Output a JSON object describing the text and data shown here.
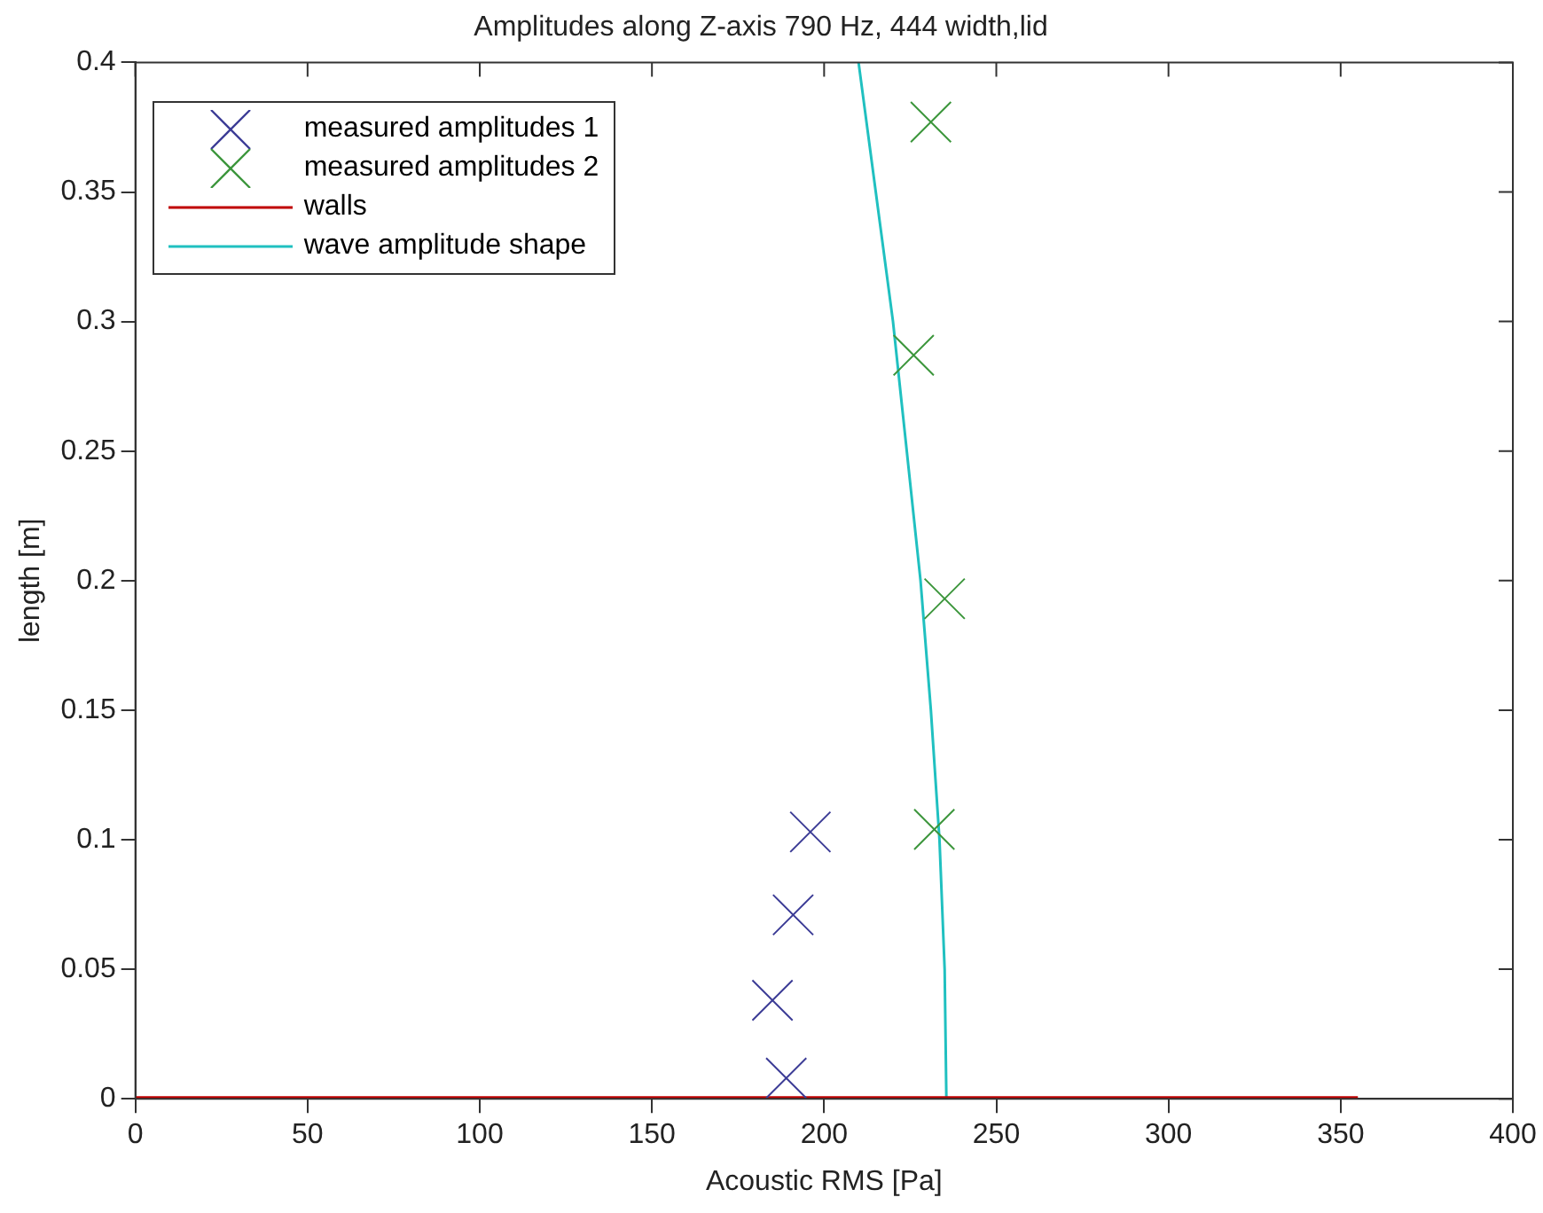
{
  "chart_data": {
    "type": "scatter",
    "title": "Amplitudes along Z-axis 790 Hz, 444 width,lid",
    "xlabel": "Acoustic RMS [Pa]",
    "ylabel": "length [m]",
    "xlim": [
      0,
      400
    ],
    "xticks": [
      0,
      50,
      100,
      150,
      200,
      250,
      300,
      350,
      400
    ],
    "ylim": [
      0,
      0.4
    ],
    "yticks": [
      0,
      0.05,
      0.1,
      0.15,
      0.2,
      0.25,
      0.3,
      0.35,
      0.4
    ],
    "grid": false,
    "legend": "top left",
    "series": [
      {
        "name": "measured amplitudes 1",
        "color": "#3c3c96",
        "type": "scatter",
        "marker": "cross",
        "x": [
          189,
          185,
          191,
          196
        ],
        "values": [
          0.008,
          0.038,
          0.071,
          0.103
        ]
      },
      {
        "name": "measured amplitudes 2",
        "color": "#3c963c",
        "type": "scatter",
        "marker": "cross",
        "x": [
          232,
          235,
          226,
          231
        ],
        "values": [
          0.104,
          0.193,
          0.287,
          0.377
        ]
      },
      {
        "name": "walls",
        "color": "#c00000",
        "type": "line",
        "x": [
          0,
          355
        ],
        "values": [
          0,
          0
        ]
      },
      {
        "name": "wave amplitude shape",
        "color": "#20c0c0",
        "type": "line",
        "x": [
          235.5,
          235,
          233.5,
          231,
          228,
          224,
          220,
          215,
          210
        ],
        "values": [
          0,
          0.05,
          0.1,
          0.15,
          0.2,
          0.25,
          0.3,
          0.35,
          0.4
        ]
      }
    ]
  }
}
